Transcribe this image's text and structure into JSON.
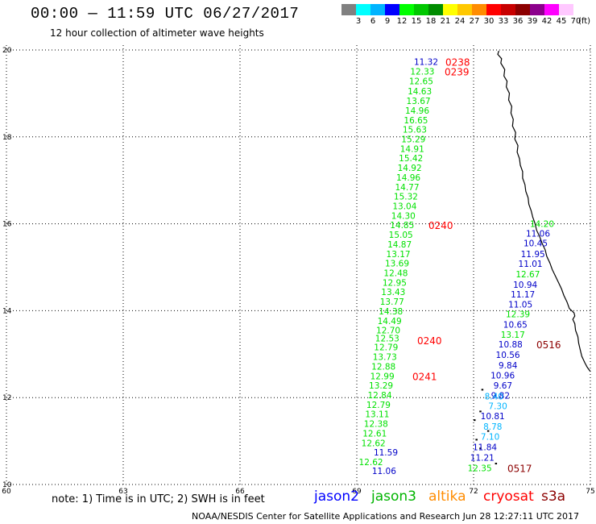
{
  "header": {
    "title": "00:00 — 11:59 UTC 06/27/2017",
    "subtitle": "12 hour collection of altimeter wave heights"
  },
  "color_scale": {
    "labels": [
      "3",
      "6",
      "9",
      "12",
      "15",
      "18",
      "21",
      "24",
      "27",
      "30",
      "33",
      "36",
      "39",
      "42",
      "45",
      "70"
    ],
    "unit": "(ft)",
    "colors": [
      "#808080",
      "#00ffff",
      "#00b4ff",
      "#0000ff",
      "#00ff00",
      "#00c800",
      "#008c00",
      "#ffff00",
      "#ffc800",
      "#ff8c00",
      "#ff0000",
      "#c80000",
      "#8c0000",
      "#8c008c",
      "#ff00ff",
      "#ffc8ff"
    ]
  },
  "map": {
    "lon_range": [
      60,
      75
    ],
    "lat_range": [
      10,
      20
    ],
    "x_ticks": [
      "60",
      "63",
      "66",
      "69",
      "72",
      "75"
    ],
    "y_ticks": [
      "10",
      "12",
      "14",
      "16",
      "18",
      "20"
    ],
    "colors": {
      "light_green": "#00e100",
      "green": "#00b400",
      "blue": "#0000c8",
      "cyan": "#00b4ff",
      "red": "#ff0000",
      "dark_red": "#8c0000",
      "grid": "#000000",
      "coast": "#000000"
    }
  },
  "tracks": {
    "jason3": {
      "color": "#00e100",
      "points": [
        {
          "lat": 19.51,
          "value": "12.33"
        },
        {
          "lat": 19.29,
          "value": "12.65"
        },
        {
          "lat": 19.05,
          "value": "14.63"
        },
        {
          "lat": 18.83,
          "value": "13.67"
        },
        {
          "lat": 18.61,
          "value": "14.96"
        },
        {
          "lat": 18.39,
          "value": "16.65"
        },
        {
          "lat": 18.17,
          "value": "15.63"
        },
        {
          "lat": 17.95,
          "value": "15.29"
        },
        {
          "lat": 17.73,
          "value": "14.91"
        },
        {
          "lat": 17.51,
          "value": "15.42"
        },
        {
          "lat": 17.29,
          "value": "14.92"
        },
        {
          "lat": 17.07,
          "value": "14.96"
        },
        {
          "lat": 16.85,
          "value": "14.77"
        },
        {
          "lat": 16.63,
          "value": "15.32"
        },
        {
          "lat": 16.41,
          "value": "13.04"
        },
        {
          "lat": 16.19,
          "value": "14.30"
        },
        {
          "lat": 15.97,
          "value": "14.85"
        },
        {
          "lat": 15.75,
          "value": "15.05"
        },
        {
          "lat": 15.53,
          "value": "14.87"
        },
        {
          "lat": 15.31,
          "value": "13.17"
        },
        {
          "lat": 15.09,
          "value": "13.69"
        },
        {
          "lat": 14.87,
          "value": "12.48"
        },
        {
          "lat": 14.65,
          "value": "12.95"
        },
        {
          "lat": 14.43,
          "value": "13.43"
        },
        {
          "lat": 14.21,
          "value": "13.77"
        },
        {
          "lat": 13.99,
          "value": "14.38"
        },
        {
          "lat": 13.77,
          "value": "14.49"
        },
        {
          "lat": 13.55,
          "value": "12.70"
        },
        {
          "lat": 13.37,
          "value": "12.53"
        },
        {
          "lat": 13.16,
          "value": "12.79"
        },
        {
          "lat": 12.94,
          "value": "13.73"
        },
        {
          "lat": 12.72,
          "value": "12.88"
        },
        {
          "lat": 12.5,
          "value": "12.99"
        },
        {
          "lat": 12.28,
          "value": "13.29"
        },
        {
          "lat": 12.06,
          "value": "12.84"
        },
        {
          "lat": 11.84,
          "value": "12.79"
        },
        {
          "lat": 11.62,
          "value": "13.11"
        },
        {
          "lat": 11.4,
          "value": "12.38"
        },
        {
          "lat": 11.18,
          "value": "12.61"
        },
        {
          "lat": 10.96,
          "value": "12.62"
        },
        {
          "lat": 10.52,
          "value": "12.62"
        }
      ]
    },
    "jason2": {
      "color": "#0000c8",
      "points": [
        {
          "lat": 19.73,
          "value": "11.32"
        },
        {
          "lat": 10.74,
          "value": "11.59"
        },
        {
          "lat": 10.32,
          "value": "11.06"
        }
      ]
    },
    "jason2_east": {
      "points": [
        {
          "lat": 15.78,
          "value": "11.06",
          "c": "blue"
        },
        {
          "lat": 15.56,
          "value": "10.45",
          "c": "blue"
        },
        {
          "lat": 15.31,
          "value": "11.95",
          "c": "blue"
        },
        {
          "lat": 15.08,
          "value": "11.01",
          "c": "blue"
        },
        {
          "lat": 14.84,
          "value": "12.67",
          "c": "light_green"
        },
        {
          "lat": 14.6,
          "value": "10.94",
          "c": "blue"
        },
        {
          "lat": 14.38,
          "value": "11.17",
          "c": "blue"
        },
        {
          "lat": 14.15,
          "value": "11.05",
          "c": "blue"
        },
        {
          "lat": 13.92,
          "value": "12.39",
          "c": "light_green"
        },
        {
          "lat": 13.68,
          "value": "10.65",
          "c": "blue"
        },
        {
          "lat": 13.45,
          "value": "13.17",
          "c": "light_green"
        },
        {
          "lat": 13.23,
          "value": "10.88",
          "c": "blue"
        },
        {
          "lat": 12.99,
          "value": "10.56",
          "c": "blue"
        },
        {
          "lat": 12.75,
          "value": "9.84",
          "c": "blue"
        },
        {
          "lat": 12.51,
          "value": "10.96",
          "c": "blue"
        },
        {
          "lat": 12.28,
          "value": "9.67",
          "c": "blue"
        },
        {
          "lat": 12.05,
          "value": "9.82",
          "c": "blue"
        },
        {
          "lat": 11.81,
          "value": "7.30",
          "c": "cyan"
        },
        {
          "lat": 11.58,
          "value": "10.81",
          "c": "blue"
        },
        {
          "lat": 11.34,
          "value": "8.78",
          "c": "cyan"
        },
        {
          "lat": 11.1,
          "value": "7.10",
          "c": "cyan"
        },
        {
          "lat": 10.86,
          "value": "11.84",
          "c": "blue"
        },
        {
          "lat": 10.62,
          "value": "11.21",
          "c": "blue"
        },
        {
          "lat": 10.38,
          "value": "12.35",
          "c": "light_green"
        }
      ],
      "top_label": {
        "lat": 16.0,
        "value": "14.20"
      },
      "extra_cyan": {
        "lat": 12.03,
        "value": "8.40"
      }
    },
    "time_labels": [
      {
        "lat": 19.73,
        "text": "0238",
        "c": "red"
      },
      {
        "lat": 19.51,
        "text": "0239",
        "c": "red"
      },
      {
        "lat": 15.97,
        "text": "0240",
        "c": "red"
      },
      {
        "lat": 13.32,
        "text": "0240",
        "c": "red"
      },
      {
        "lat": 12.5,
        "text": "0241",
        "c": "red"
      },
      {
        "lat": 13.23,
        "text": "0516",
        "c": "dark_red"
      },
      {
        "lat": 10.38,
        "text": "0517",
        "c": "dark_red"
      }
    ]
  },
  "footer": {
    "note": "note: 1) Time is in UTC; 2) SWH is in feet",
    "legend": [
      {
        "name": "jason2",
        "color": "#0000ff"
      },
      {
        "name": "jason3",
        "color": "#00b400"
      },
      {
        "name": "altika",
        "color": "#ff8c00"
      },
      {
        "name": "cryosat",
        "color": "#ff0000"
      },
      {
        "name": "s3a",
        "color": "#8c0000"
      }
    ],
    "credit": "NOAA/NESDIS Center for Satellite Applications and Research    Jun 28 12:27:11 UTC 2017"
  }
}
